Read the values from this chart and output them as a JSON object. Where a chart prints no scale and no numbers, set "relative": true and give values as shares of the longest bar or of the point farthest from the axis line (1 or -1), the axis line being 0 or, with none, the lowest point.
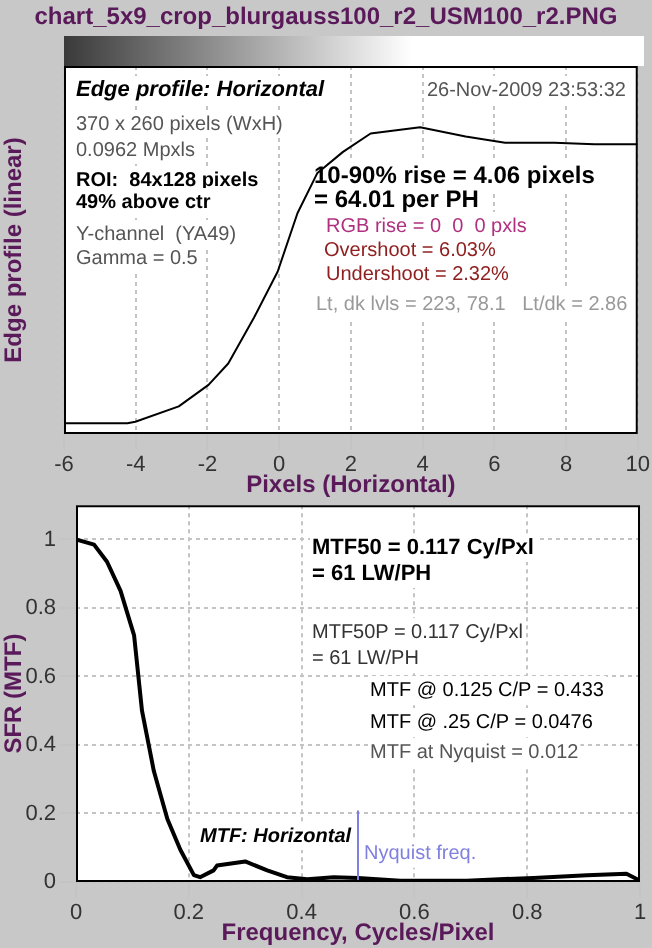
{
  "chart_data": [
    {
      "type": "line",
      "title": "chart_5x9_crop_blurgauss100_r2_USM100_r2.PNG",
      "xlabel": "Pixels (Horizontal)",
      "ylabel": "Edge profile (linear)",
      "relative": true,
      "color": "#000000",
      "x": [
        -6,
        -4.23,
        -4.01,
        -2.8,
        -1.97,
        -1.42,
        -0.7,
        -0.04,
        0.51,
        1.06,
        1.78,
        2.55,
        3.93,
        5.2,
        6.3,
        7.68,
        8.79,
        10
      ],
      "values": [
        0.035,
        0.035,
        0.04,
        0.09,
        0.16,
        0.23,
        0.38,
        0.53,
        0.72,
        0.85,
        0.92,
        0.98,
        1,
        0.97,
        0.95,
        0.95,
        0.945,
        0.945
      ],
      "xlim": [
        -6,
        10
      ],
      "xticks": [
        -6,
        -4,
        -2,
        0,
        2,
        4,
        6,
        8,
        10
      ],
      "grid": "x",
      "annotations": [
        "Edge profile: Horizontal",
        "26-Nov-2009 23:53:32",
        "370 x 260 pixels (WxH)",
        "0.0962 Mpxls",
        "ROI:  84x128 pixels",
        "49% above ctr",
        "Y-channel  (YA49)",
        "Gamma = 0.5",
        "10-90% rise = 4.06 pixels",
        "= 64.01 per PH",
        "RGB rise = 0  0  0 pxls",
        "Overshoot = 6.03%",
        "Undershoot = 2.32%",
        "Lt, dk lvls = 223, 78.1   Lt/dk = 2.86"
      ]
    },
    {
      "type": "line",
      "xlabel": "Frequency, Cycles/Pixel",
      "ylabel": "SFR (MTF)",
      "color": "#000000",
      "x": [
        0,
        0.032,
        0.055,
        0.079,
        0.103,
        0.117,
        0.125,
        0.138,
        0.162,
        0.185,
        0.209,
        0.22,
        0.244,
        0.25,
        0.3,
        0.339,
        0.374,
        0.41,
        0.457,
        0.5,
        0.575,
        0.693,
        0.811,
        0.906,
        0.976,
        1
      ],
      "values": [
        1,
        0.985,
        0.935,
        0.85,
        0.72,
        0.5,
        0.433,
        0.324,
        0.184,
        0.094,
        0.02,
        0.014,
        0.034,
        0.048,
        0.06,
        0.034,
        0.014,
        0.008,
        0.014,
        0.012,
        0.004,
        0.004,
        0.012,
        0.02,
        0.024,
        0.004
      ],
      "xlim": [
        0,
        1
      ],
      "xticks": [
        0,
        0.2,
        0.4,
        0.6,
        0.8,
        1
      ],
      "ylim": [
        0,
        1.1
      ],
      "yticks": [
        0,
        0.2,
        0.4,
        0.6,
        0.8,
        1
      ],
      "grid": true,
      "ref_lines": [
        {
          "axis": "x",
          "value": 0.5,
          "label": "Nyquist freq.",
          "color": "#8080e0"
        }
      ],
      "annotations": [
        "MTF50 = 0.117 Cy/Pxl",
        "= 61 LW/PH",
        "MTF50P = 0.117 Cy/Pxl",
        "= 61 LW/PH",
        "MTF @ 0.125 C/P = 0.433",
        "MTF @ .25 C/P = 0.0476",
        "MTF at Nyquist = 0.012",
        "MTF: Horizontal"
      ]
    }
  ]
}
